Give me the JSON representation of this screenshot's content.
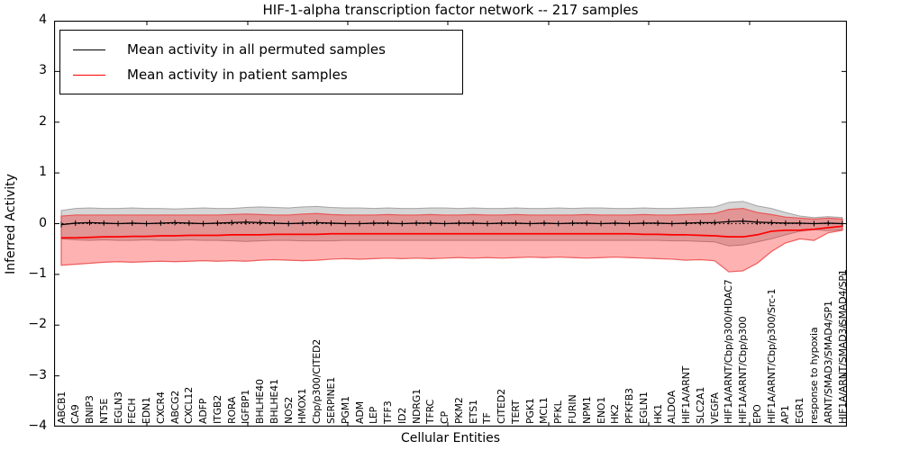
{
  "figure": {
    "title": "HIF-1-alpha transcription factor network -- 217 samples",
    "xlabel": "Cellular Entities",
    "ylabel": "Inferred Activity"
  },
  "legend": {
    "entries": [
      {
        "label": "Mean activity in all permuted samples",
        "color": "#000000"
      },
      {
        "label": "Mean activity in patient samples",
        "color": "#ff0000"
      }
    ]
  },
  "chart_data": {
    "type": "line",
    "title": "HIF-1-alpha transcription factor network -- 217 samples",
    "xlabel": "Cellular Entities",
    "ylabel": "Inferred Activity",
    "ylim": [
      -4,
      4
    ],
    "y_ticks": [
      "4",
      "3",
      "2",
      "1",
      "0",
      "−1",
      "−2",
      "−3",
      "−4"
    ],
    "grid": false,
    "legend_position": "upper left",
    "zero_line": 0,
    "categories": [
      "ABCB1",
      "CA9",
      "BNIP3",
      "NT5E",
      "EGLN3",
      "FECH",
      "EDN1",
      "CXCR4",
      "ABCG2",
      "CXCL12",
      "ADFP",
      "ITGB2",
      "RORA",
      "IGFBP1",
      "BHLHE40",
      "BHLHE41",
      "NOS2",
      "HMOX1",
      "Cbp/p300/CITED2",
      "SERPINE1",
      "PGM1",
      "ADM",
      "LEP",
      "TFF3",
      "ID2",
      "NDRG1",
      "TFRC",
      "CP",
      "PKM2",
      "ETS1",
      "TF",
      "CITED2",
      "TERT",
      "PGK1",
      "MCL1",
      "PFKL",
      "FURIN",
      "NPM1",
      "ENO1",
      "HK2",
      "PFKFB3",
      "EGLN1",
      "HK1",
      "ALDOA",
      "HIF1A/ARNT",
      "SLC2A1",
      "VEGFA",
      "HIF1A/ARNT/Cbp/p300/HDAC7",
      "HIF1A/ARNT/Cbp/p300",
      "EPO",
      "HIF1A/ARNT/Cbp/p300/Src-1",
      "AP1",
      "EGR1",
      "response to hypoxia",
      "ARNT/SMAD3/SMAD4/SP1",
      "HIF1A/ARNT/SMAD3/SMAD4/SP1"
    ],
    "series": [
      {
        "name": "Mean activity in all permuted samples",
        "type": "line",
        "color": "#000000",
        "values": [
          -0.02,
          0.01,
          0.02,
          0.01,
          0.0,
          0.01,
          0.0,
          0.01,
          0.02,
          0.01,
          0.0,
          0.01,
          0.02,
          0.03,
          0.02,
          0.01,
          0.0,
          0.01,
          0.02,
          0.01,
          0.0,
          0.0,
          0.01,
          0.01,
          0.0,
          0.01,
          0.01,
          0.0,
          0.01,
          0.01,
          0.0,
          0.01,
          0.01,
          0.0,
          0.01,
          0.0,
          0.01,
          0.01,
          0.0,
          0.01,
          0.0,
          0.01,
          0.01,
          0.0,
          0.01,
          0.02,
          0.02,
          0.04,
          0.05,
          0.03,
          0.02,
          0.01,
          0.01,
          0.0,
          0.01,
          0.0
        ]
      },
      {
        "name": "Mean activity in patient samples",
        "type": "line",
        "color": "#ff0000",
        "values": [
          -0.28,
          -0.28,
          -0.27,
          -0.26,
          -0.26,
          -0.25,
          -0.25,
          -0.24,
          -0.24,
          -0.23,
          -0.23,
          -0.23,
          -0.22,
          -0.22,
          -0.22,
          -0.21,
          -0.21,
          -0.21,
          -0.21,
          -0.2,
          -0.2,
          -0.2,
          -0.2,
          -0.2,
          -0.2,
          -0.2,
          -0.2,
          -0.2,
          -0.2,
          -0.2,
          -0.2,
          -0.2,
          -0.2,
          -0.2,
          -0.2,
          -0.2,
          -0.2,
          -0.2,
          -0.2,
          -0.2,
          -0.2,
          -0.21,
          -0.21,
          -0.22,
          -0.22,
          -0.23,
          -0.24,
          -0.26,
          -0.26,
          -0.22,
          -0.15,
          -0.13,
          -0.13,
          -0.11,
          -0.08,
          -0.05
        ]
      },
      {
        "name": "Permuted samples range",
        "type": "band",
        "color": "rgba(120,120,120,0.30)",
        "upper": [
          0.26,
          0.3,
          0.31,
          0.3,
          0.3,
          0.31,
          0.3,
          0.3,
          0.29,
          0.3,
          0.31,
          0.3,
          0.3,
          0.32,
          0.33,
          0.32,
          0.31,
          0.33,
          0.34,
          0.32,
          0.31,
          0.31,
          0.3,
          0.31,
          0.3,
          0.3,
          0.31,
          0.31,
          0.3,
          0.31,
          0.3,
          0.3,
          0.31,
          0.3,
          0.3,
          0.31,
          0.3,
          0.31,
          0.31,
          0.3,
          0.3,
          0.31,
          0.3,
          0.3,
          0.31,
          0.32,
          0.33,
          0.42,
          0.44,
          0.35,
          0.3,
          0.22,
          0.15,
          0.12,
          0.14,
          0.12
        ],
        "lower": [
          -0.3,
          -0.32,
          -0.33,
          -0.32,
          -0.33,
          -0.33,
          -0.32,
          -0.33,
          -0.33,
          -0.32,
          -0.33,
          -0.33,
          -0.34,
          -0.35,
          -0.34,
          -0.33,
          -0.33,
          -0.34,
          -0.34,
          -0.34,
          -0.33,
          -0.33,
          -0.33,
          -0.33,
          -0.33,
          -0.33,
          -0.33,
          -0.33,
          -0.33,
          -0.33,
          -0.33,
          -0.33,
          -0.33,
          -0.33,
          -0.33,
          -0.33,
          -0.33,
          -0.33,
          -0.33,
          -0.33,
          -0.33,
          -0.33,
          -0.33,
          -0.34,
          -0.34,
          -0.35,
          -0.36,
          -0.44,
          -0.42,
          -0.36,
          -0.3,
          -0.22,
          -0.15,
          -0.12,
          -0.14,
          -0.12
        ]
      },
      {
        "name": "Patient samples range",
        "type": "band",
        "color": "rgba(255,0,0,0.30)",
        "upper": [
          0.15,
          0.17,
          0.17,
          0.17,
          0.17,
          0.17,
          0.17,
          0.17,
          0.17,
          0.17,
          0.17,
          0.17,
          0.18,
          0.19,
          0.18,
          0.17,
          0.17,
          0.19,
          0.2,
          0.18,
          0.17,
          0.17,
          0.17,
          0.18,
          0.17,
          0.17,
          0.18,
          0.17,
          0.17,
          0.18,
          0.17,
          0.17,
          0.18,
          0.17,
          0.17,
          0.17,
          0.17,
          0.18,
          0.17,
          0.17,
          0.17,
          0.18,
          0.17,
          0.17,
          0.18,
          0.19,
          0.2,
          0.28,
          0.3,
          0.22,
          0.18,
          0.13,
          0.11,
          0.09,
          0.11,
          0.09
        ],
        "lower": [
          -0.82,
          -0.8,
          -0.78,
          -0.76,
          -0.75,
          -0.76,
          -0.75,
          -0.74,
          -0.75,
          -0.74,
          -0.73,
          -0.74,
          -0.73,
          -0.74,
          -0.72,
          -0.71,
          -0.72,
          -0.73,
          -0.72,
          -0.7,
          -0.69,
          -0.7,
          -0.69,
          -0.68,
          -0.69,
          -0.68,
          -0.69,
          -0.68,
          -0.67,
          -0.68,
          -0.67,
          -0.68,
          -0.67,
          -0.66,
          -0.67,
          -0.66,
          -0.67,
          -0.68,
          -0.67,
          -0.66,
          -0.67,
          -0.68,
          -0.69,
          -0.7,
          -0.72,
          -0.71,
          -0.73,
          -0.95,
          -0.93,
          -0.78,
          -0.55,
          -0.38,
          -0.3,
          -0.33,
          -0.18,
          -0.13
        ]
      }
    ]
  }
}
